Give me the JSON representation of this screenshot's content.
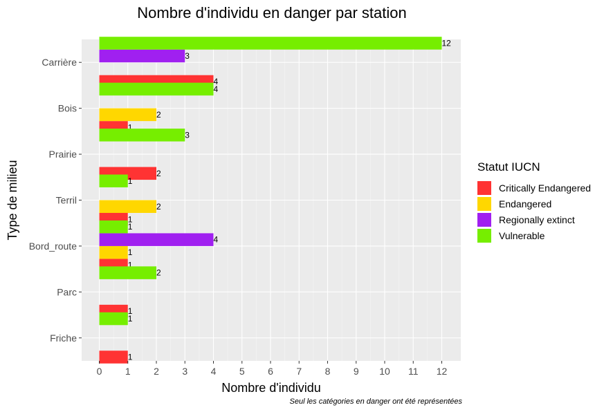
{
  "chart_data": {
    "type": "bar",
    "orientation": "horizontal",
    "title": "Nombre d'individu en danger par station",
    "xlabel": "Nombre d'individu",
    "ylabel": "Type de milieu",
    "caption": "Seul les catégories en danger ont été représentées",
    "categories": [
      "Carrière",
      "Bois",
      "Prairie",
      "Terril",
      "Bord_route",
      "Parc",
      "Friche"
    ],
    "xlim": [
      0,
      12
    ],
    "xticks": [
      0,
      1,
      2,
      3,
      4,
      5,
      6,
      7,
      8,
      9,
      10,
      11,
      12
    ],
    "grid": true,
    "legend_title": "Statut IUCN",
    "legend_position": "right",
    "series": [
      {
        "name": "Critically Endangered",
        "color": "#FF3333",
        "values": [
          4,
          1,
          2,
          1,
          1,
          1,
          1
        ]
      },
      {
        "name": "Endangered",
        "color": "#FFD700",
        "values": [
          null,
          2,
          null,
          2,
          1,
          null,
          null
        ]
      },
      {
        "name": "Regionally extinct",
        "color": "#A020F0",
        "values": [
          3,
          null,
          null,
          null,
          4,
          null,
          null
        ]
      },
      {
        "name": "Vulnerable",
        "color": "#76EE00",
        "values": [
          12,
          4,
          3,
          1,
          1,
          2,
          1
        ]
      }
    ]
  }
}
